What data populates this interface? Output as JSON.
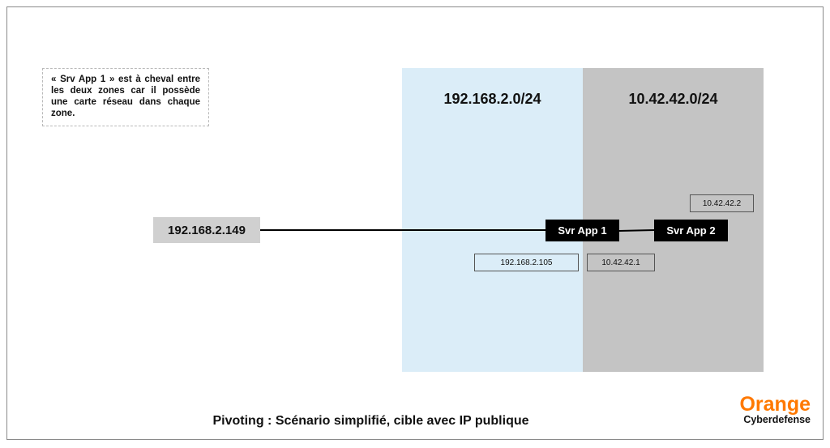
{
  "colors": {
    "zone_a_bg": "#dbedf8",
    "zone_b_bg": "#c4c4c4",
    "brand": "#ff7900"
  },
  "note": {
    "text": "« Srv App 1 » est à cheval entre les deux zones car il possède une carte réseau dans chaque zone."
  },
  "zones": [
    {
      "subnet": "192.168.2.0/24"
    },
    {
      "subnet": "10.42.42.0/24"
    }
  ],
  "nodes": {
    "attacker": {
      "ip": "192.168.2.149"
    },
    "server1": {
      "label": "Svr App 1",
      "ip_zone_a": "192.168.2.105",
      "ip_zone_b": "10.42.42.1"
    },
    "server2": {
      "label": "Svr App 2",
      "ip": "10.42.42.2"
    }
  },
  "caption": "Pivoting : Scénario simplifié, cible avec IP publique",
  "logo": {
    "brand": "Orange",
    "product": "Cyberdefense"
  }
}
